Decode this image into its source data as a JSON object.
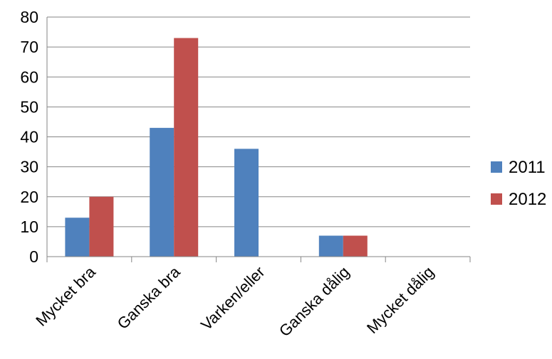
{
  "chart_data": {
    "type": "bar",
    "categories": [
      "Mycket bra",
      "Ganska bra",
      "Varken/eller",
      "Ganska dålig",
      "Mycket dålig"
    ],
    "series": [
      {
        "name": "2011",
        "color": "#4F81BD",
        "values": [
          13,
          43,
          36,
          7,
          0
        ]
      },
      {
        "name": "2012",
        "color": "#C0504D",
        "values": [
          20,
          73,
          0,
          7,
          0
        ]
      }
    ],
    "ylim": [
      0,
      80
    ],
    "yticks": [
      0,
      10,
      20,
      30,
      40,
      50,
      60,
      70,
      80
    ],
    "grid": true,
    "legend": "right",
    "title": "",
    "xlabel": "",
    "ylabel": ""
  }
}
